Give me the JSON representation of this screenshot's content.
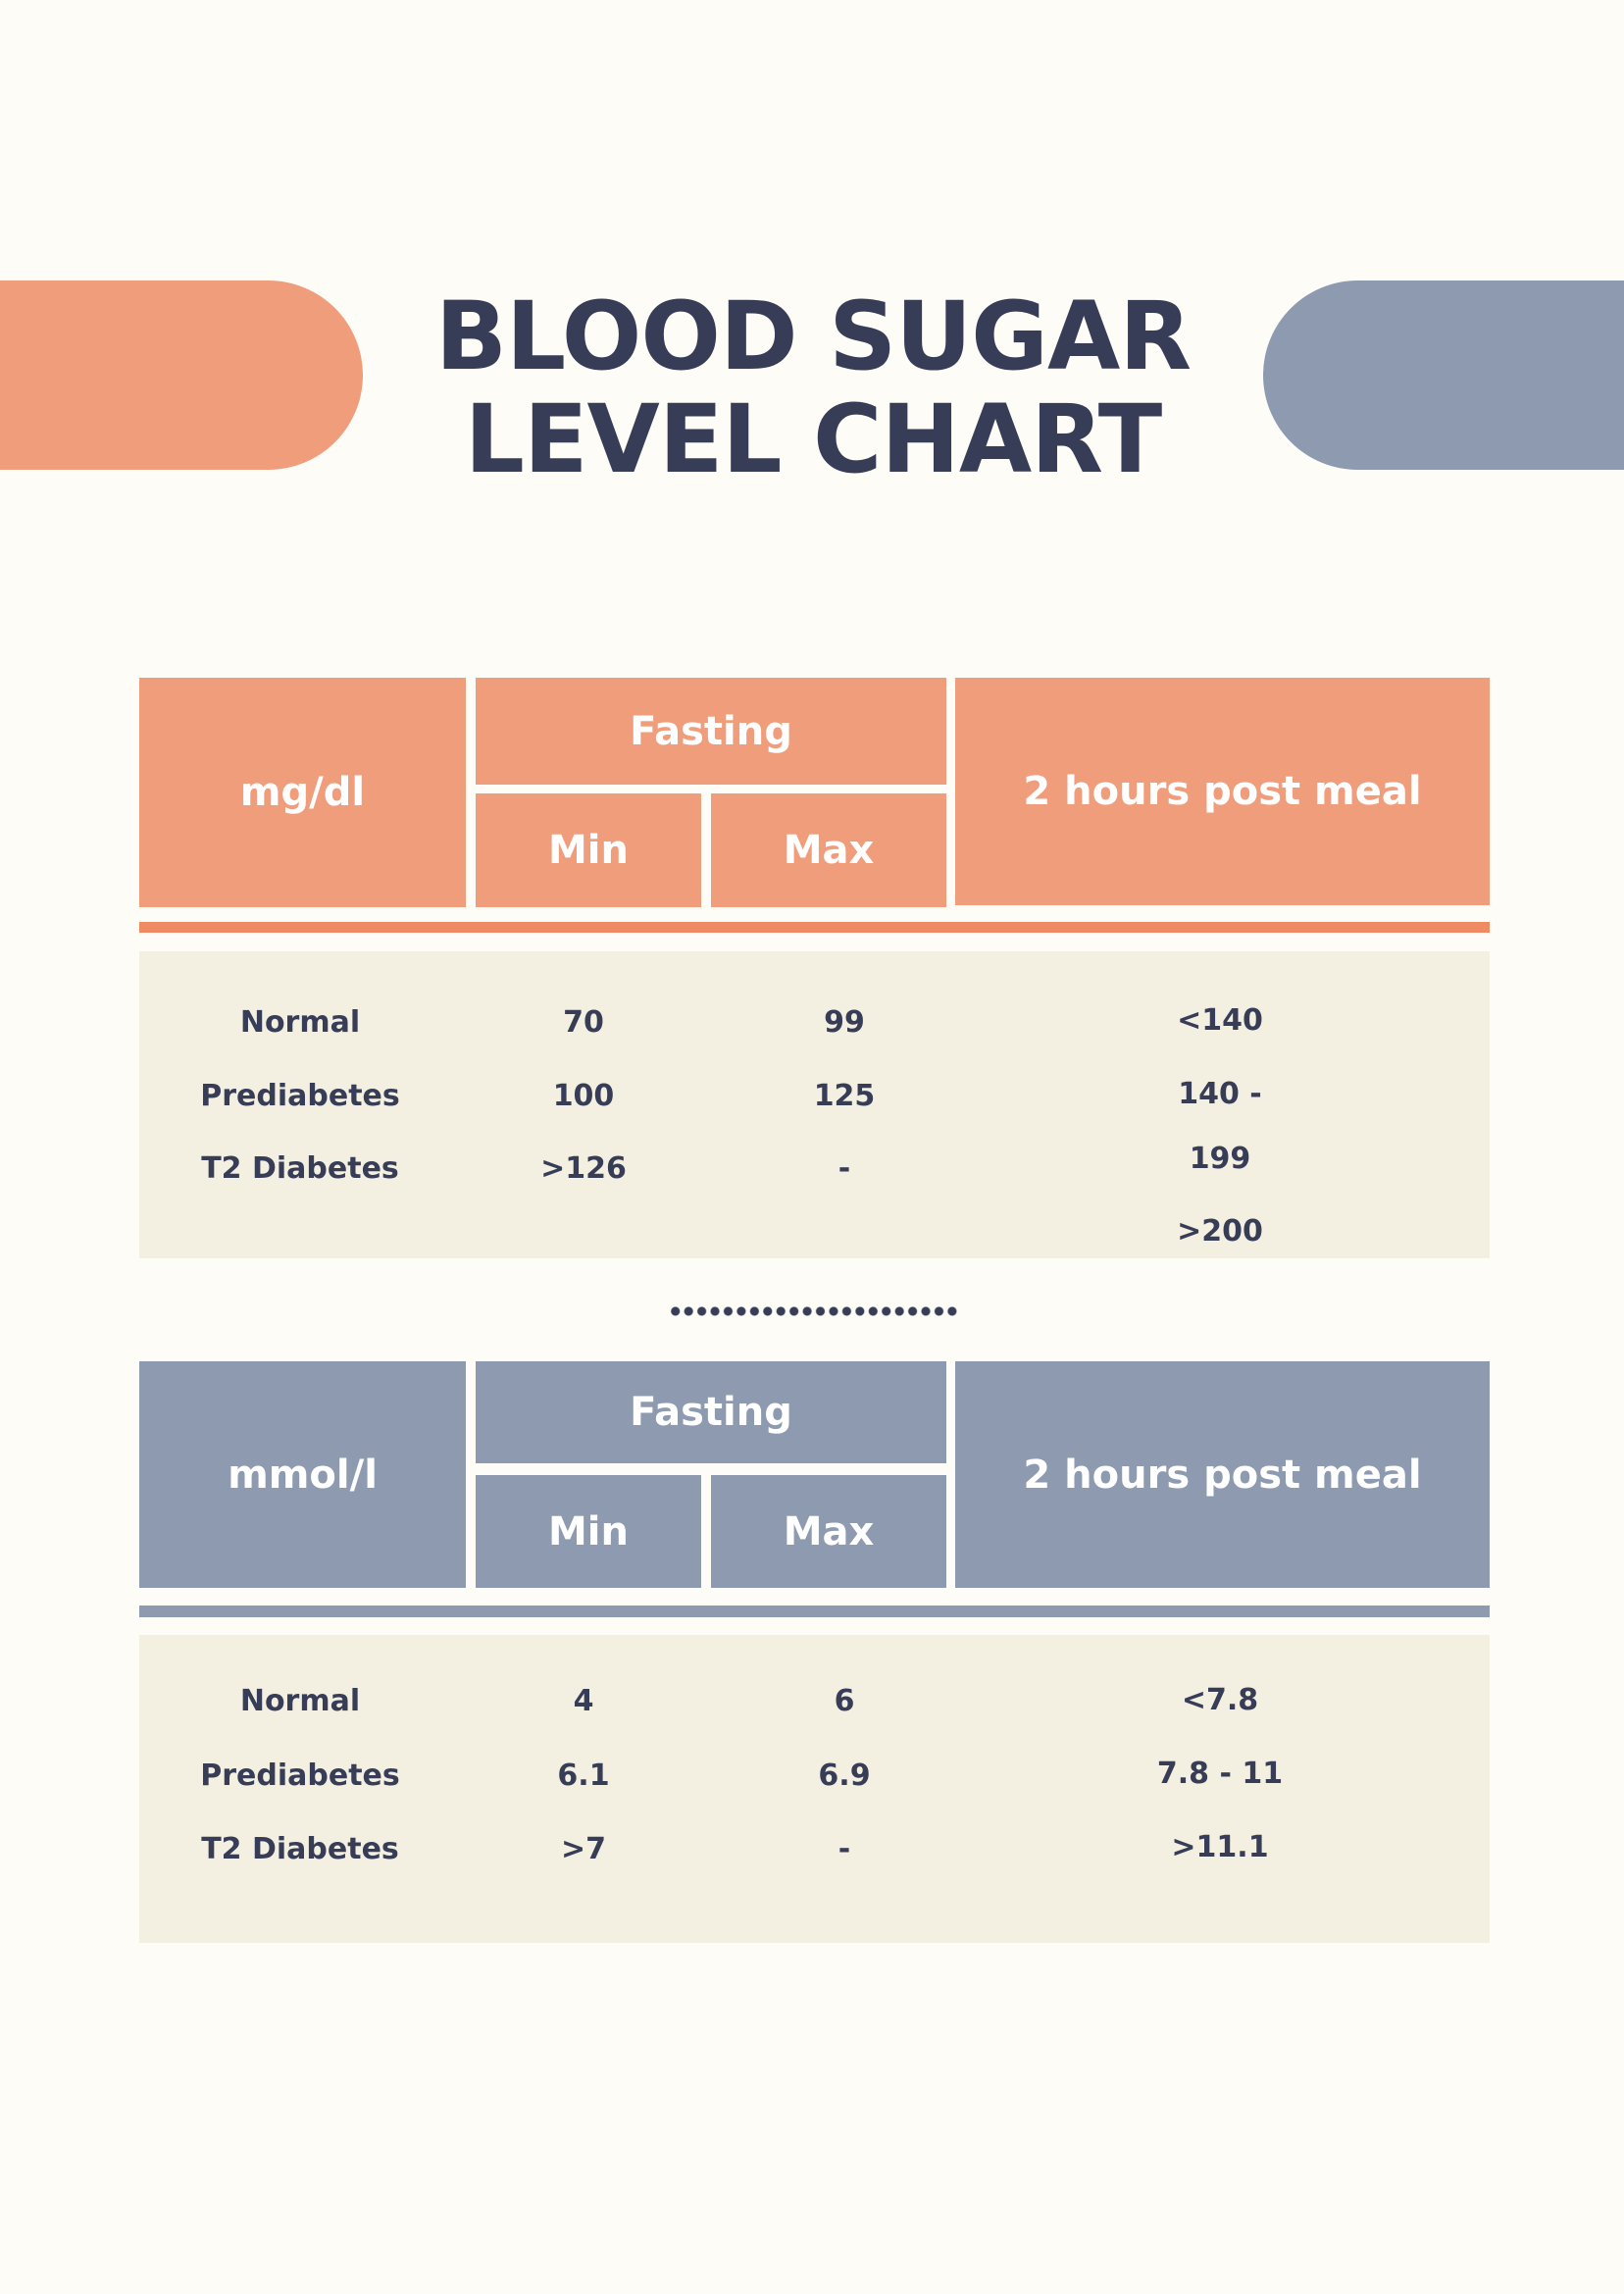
{
  "title": {
    "line1": "BLOOD SUGAR",
    "line2": "LEVEL CHART"
  },
  "colors": {
    "orange": "#f09d7c",
    "blue": "#8d9ab0",
    "text": "#383d57",
    "body": "#f3f0e1"
  },
  "tables": [
    {
      "unit": "mg/dl",
      "fasting": "Fasting",
      "min": "Min",
      "max": "Max",
      "post": "2 hours post meal",
      "rows": [
        {
          "label": "Normal",
          "min": "70",
          "max": "99"
        },
        {
          "label": "Prediabetes",
          "min": "100",
          "max": "125"
        },
        {
          "label": "T2 Diabetes",
          "min": ">126",
          "max": "-"
        }
      ],
      "post_lines": [
        "<140",
        "140 -",
        "199",
        ">200"
      ]
    },
    {
      "unit": "mmol/l",
      "fasting": "Fasting",
      "min": "Min",
      "max": "Max",
      "post": "2 hours post meal",
      "rows": [
        {
          "label": "Normal",
          "min": "4",
          "max": "6"
        },
        {
          "label": "Prediabetes",
          "min": "6.1",
          "max": "6.9"
        },
        {
          "label": "T2 Diabetes",
          "min": ">7",
          "max": "-"
        }
      ],
      "post_lines": [
        "<7.8",
        "7.8 - 11",
        ">11.1"
      ]
    }
  ]
}
